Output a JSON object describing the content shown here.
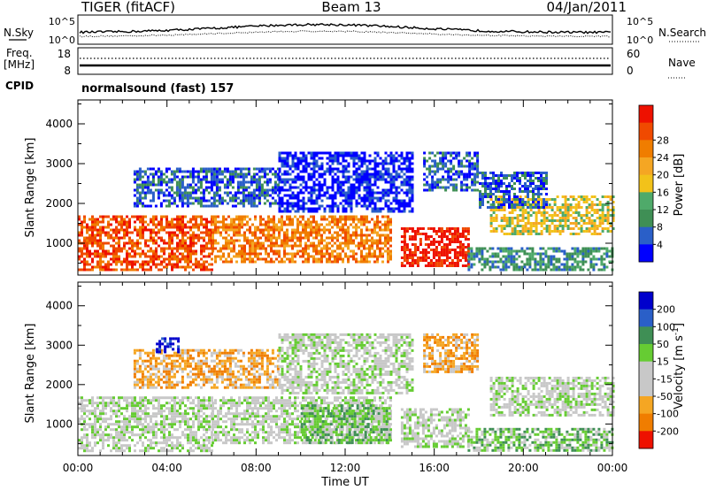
{
  "header": {
    "radar": "TIGER (fitACF)",
    "beam": "Beam 13",
    "date": "04/Jan/2011"
  },
  "summary_panel": {
    "nsky_label": "N.Sky",
    "nsearch_label": "N.Search",
    "noise_ticks": [
      "10^5",
      "10^0"
    ],
    "freq_label_1": "Freq.",
    "freq_label_2": "[MHz]",
    "freq_ticks": [
      "18",
      "8"
    ],
    "nave_label": "Nave",
    "nave_ticks": [
      "60",
      "0"
    ],
    "cpid_label": "CPID",
    "cpid_value": "normalsound (fast) 157"
  },
  "chart_data": [
    {
      "type": "heatmap",
      "name": "power-panel",
      "ylabel": "Slant Range [km]",
      "ylim": [
        200,
        4600
      ],
      "yticks": [
        1000,
        2000,
        3000,
        4000
      ],
      "xlim": [
        0,
        24
      ],
      "colorbar": {
        "label": "Power [dB]",
        "ticks": [
          "4",
          "8",
          "12",
          "16",
          "20",
          "24",
          "28"
        ],
        "colors": [
          "#0000ff",
          "#2a5fc8",
          "#3f8f55",
          "#4faa6a",
          "#f2c21a",
          "#f5a623",
          "#f07d00",
          "#f04a00",
          "#ee1100"
        ]
      },
      "echo_regions": [
        {
          "t0": 0.0,
          "t1": 6.0,
          "r0": 350,
          "r1": 1700,
          "level": 7
        },
        {
          "t0": 6.0,
          "t1": 14.0,
          "r0": 500,
          "r1": 1700,
          "level": 6
        },
        {
          "t0": 14.5,
          "t1": 17.5,
          "r0": 400,
          "r1": 1400,
          "level": 8
        },
        {
          "t0": 17.5,
          "t1": 24.0,
          "r0": 300,
          "r1": 900,
          "level": 2
        },
        {
          "t0": 18.5,
          "t1": 24.0,
          "r0": 1200,
          "r1": 2200,
          "level": 4
        },
        {
          "t0": 2.5,
          "t1": 9.0,
          "r0": 1900,
          "r1": 2900,
          "level": 1
        },
        {
          "t0": 9.0,
          "t1": 15.0,
          "r0": 1800,
          "r1": 3300,
          "level": 0
        },
        {
          "t0": 15.5,
          "t1": 18.0,
          "r0": 2300,
          "r1": 3300,
          "level": 1
        },
        {
          "t0": 18.0,
          "t1": 21.0,
          "r0": 1900,
          "r1": 2800,
          "level": 1
        }
      ]
    },
    {
      "type": "heatmap",
      "name": "velocity-panel",
      "ylabel": "Slant Range [km]",
      "ylim": [
        200,
        4600
      ],
      "yticks": [
        1000,
        2000,
        3000,
        4000
      ],
      "xlim": [
        0,
        24
      ],
      "xticks": [
        "00:00",
        "04:00",
        "08:00",
        "12:00",
        "16:00",
        "20:00",
        "00:00"
      ],
      "xlabel": "Time UT",
      "colorbar": {
        "label": "Velocity [m s^-1]",
        "ticks": [
          "200",
          "100",
          "50",
          "15",
          "-15",
          "-50",
          "-100",
          "-200"
        ],
        "colors": [
          "#0000cc",
          "#2a5fc8",
          "#3f8f55",
          "#66cc33",
          "#c8c8c8",
          "#c8c8c8",
          "#f5a623",
          "#f07d00",
          "#ee1100"
        ]
      },
      "echo_regions": [
        {
          "t0": 0.0,
          "t1": 6.0,
          "r0": 350,
          "r1": 1700,
          "level": 4
        },
        {
          "t0": 6.0,
          "t1": 14.0,
          "r0": 500,
          "r1": 1700,
          "level": 4
        },
        {
          "t0": 10.0,
          "t1": 14.0,
          "r0": 500,
          "r1": 1500,
          "level": 3
        },
        {
          "t0": 14.5,
          "t1": 17.5,
          "r0": 400,
          "r1": 1400,
          "level": 4
        },
        {
          "t0": 17.5,
          "t1": 24.0,
          "r0": 300,
          "r1": 900,
          "level": 3
        },
        {
          "t0": 18.5,
          "t1": 24.0,
          "r0": 1200,
          "r1": 2200,
          "level": 4
        },
        {
          "t0": 2.5,
          "t1": 9.0,
          "r0": 1900,
          "r1": 2900,
          "level": 6
        },
        {
          "t0": 3.5,
          "t1": 4.5,
          "r0": 2800,
          "r1": 3200,
          "level": 0
        },
        {
          "t0": 9.0,
          "t1": 15.0,
          "r0": 1800,
          "r1": 3300,
          "level": 4
        },
        {
          "t0": 15.5,
          "t1": 18.0,
          "r0": 2300,
          "r1": 3300,
          "level": 6
        }
      ]
    }
  ]
}
